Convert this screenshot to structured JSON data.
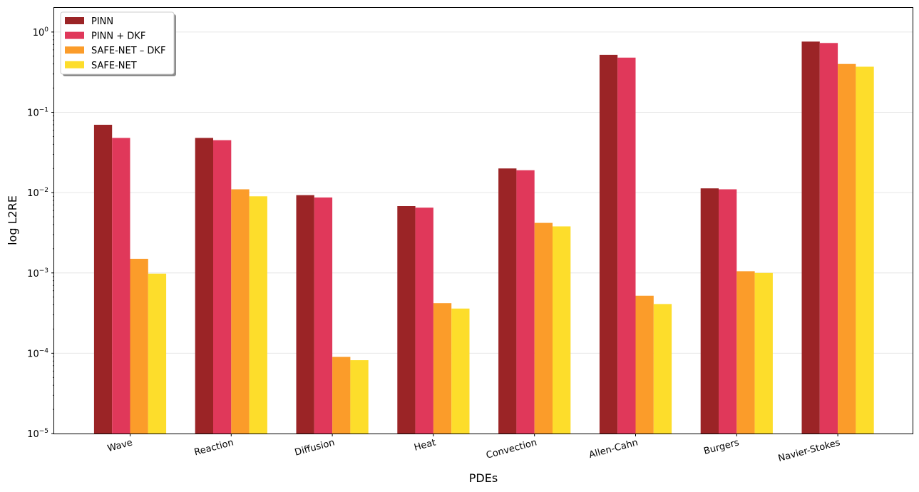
{
  "chart_data": {
    "type": "bar",
    "title": "",
    "xlabel": "PDEs",
    "ylabel": "log L2RE",
    "yscale": "log",
    "ylim": [
      1e-05,
      2
    ],
    "y_ticks": [
      {
        "value": 1e-05,
        "base": "10",
        "exp": "−5"
      },
      {
        "value": 0.0001,
        "base": "10",
        "exp": "−4"
      },
      {
        "value": 0.001,
        "base": "10",
        "exp": "−3"
      },
      {
        "value": 0.01,
        "base": "10",
        "exp": "−2"
      },
      {
        "value": 0.1,
        "base": "10",
        "exp": "−1"
      },
      {
        "value": 1,
        "base": "10",
        "exp": "0"
      }
    ],
    "grid": true,
    "legend_position": "top-left",
    "categories": [
      "Wave",
      "Reaction",
      "Diffusion",
      "Heat",
      "Convection",
      "Allen-Cahn",
      "Burgers",
      "Navier-Stokes"
    ],
    "series": [
      {
        "name": "PINN",
        "color": "#9b2426",
        "values": [
          0.07,
          0.048,
          0.0093,
          0.0068,
          0.02,
          0.52,
          0.0113,
          0.76
        ]
      },
      {
        "name": "PINN + DKF",
        "color": "#e0385a",
        "values": [
          0.048,
          0.045,
          0.0087,
          0.0065,
          0.019,
          0.48,
          0.011,
          0.73
        ]
      },
      {
        "name": "SAFE-NET – DKF",
        "color": "#fb9c2a",
        "values": [
          0.0015,
          0.011,
          9e-05,
          0.00042,
          0.0042,
          0.00052,
          0.00105,
          0.4
        ]
      },
      {
        "name": "SAFE-NET",
        "color": "#fddd2b",
        "values": [
          0.00098,
          0.009,
          8.2e-05,
          0.00036,
          0.0038,
          0.00041,
          0.001,
          0.37
        ]
      }
    ]
  }
}
